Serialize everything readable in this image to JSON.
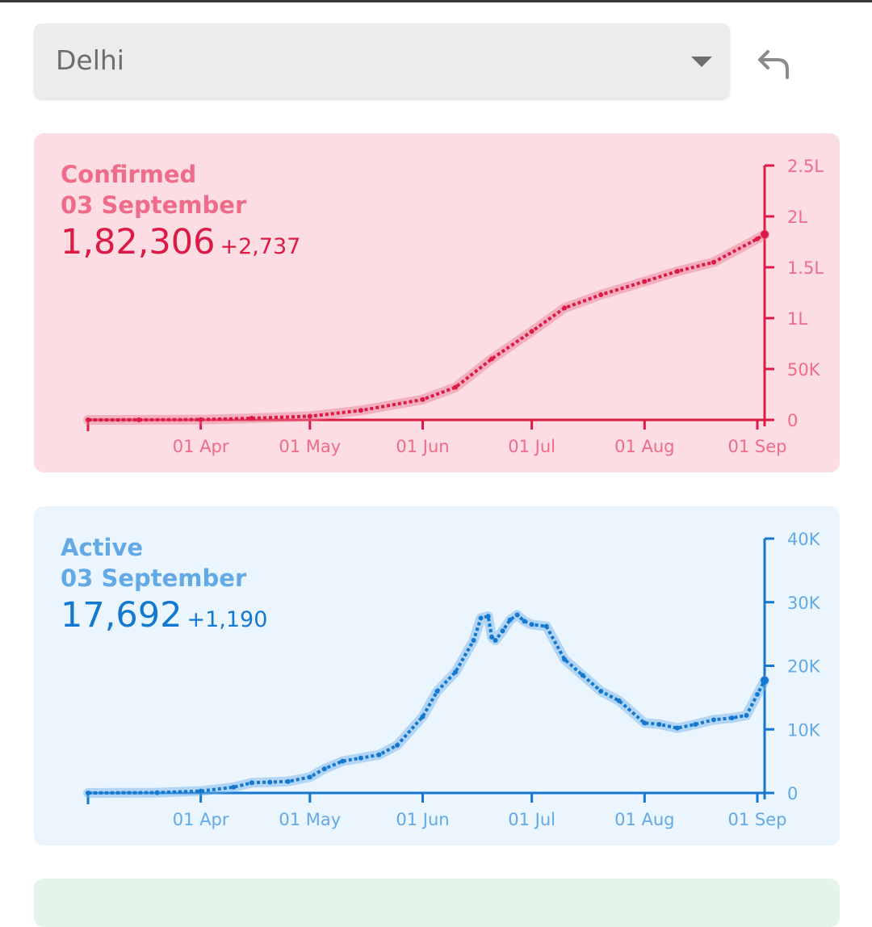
{
  "region": {
    "selected": "Delhi",
    "caret_icon": "caret-down-icon",
    "back_icon": "undo-arrow-icon"
  },
  "colors": {
    "confirmed_line": "#dc1a45",
    "confirmed_label": "#ee6c87",
    "confirmed_bg": "#fcdde3",
    "active_line": "#1378cf",
    "active_label": "#62a9e6",
    "active_bg": "#eaf5fd"
  },
  "cards": {
    "confirmed": {
      "title": "Confirmed",
      "date": "03 September",
      "total": "1,82,306",
      "delta": "+2,737"
    },
    "active": {
      "title": "Active",
      "date": "03 September",
      "total": "17,692",
      "delta": "+1,190"
    }
  },
  "chart_data": [
    {
      "type": "line",
      "series": [
        {
          "name": "Confirmed",
          "x": [
            "2020-03-01",
            "2020-03-15",
            "2020-04-01",
            "2020-04-15",
            "2020-05-01",
            "2020-05-15",
            "2020-06-01",
            "2020-06-10",
            "2020-06-20",
            "2020-07-01",
            "2020-07-10",
            "2020-07-20",
            "2020-08-01",
            "2020-08-10",
            "2020-08-20",
            "2020-09-01",
            "2020-09-03"
          ],
          "values": [
            5,
            100,
            300,
            1600,
            3600,
            9300,
            20000,
            32000,
            60000,
            87000,
            110000,
            123000,
            136000,
            146000,
            155000,
            178000,
            182306
          ]
        }
      ],
      "xlabel": "",
      "ylabel": "",
      "x_tick_labels": [
        "01 Apr",
        "01 May",
        "01 Jun",
        "01 Jul",
        "01 Aug",
        "01 Sep"
      ],
      "y_tick_labels": [
        "0",
        "50K",
        "1L",
        "1.5L",
        "2L",
        "2.5L"
      ],
      "y_ticks": [
        0,
        50000,
        100000,
        150000,
        200000,
        250000
      ],
      "ylim": [
        0,
        250000
      ],
      "xlim": [
        "2020-03-01",
        "2020-09-03"
      ],
      "y_axis_position": "right",
      "grid": false
    },
    {
      "type": "line",
      "series": [
        {
          "name": "Active",
          "x": [
            "2020-03-01",
            "2020-03-20",
            "2020-04-01",
            "2020-04-10",
            "2020-04-15",
            "2020-04-20",
            "2020-04-25",
            "2020-05-01",
            "2020-05-05",
            "2020-05-10",
            "2020-05-15",
            "2020-05-20",
            "2020-05-25",
            "2020-06-01",
            "2020-06-05",
            "2020-06-10",
            "2020-06-15",
            "2020-06-17",
            "2020-06-19",
            "2020-06-20",
            "2020-06-21",
            "2020-06-23",
            "2020-06-25",
            "2020-06-27",
            "2020-06-29",
            "2020-07-01",
            "2020-07-05",
            "2020-07-10",
            "2020-07-15",
            "2020-07-20",
            "2020-07-25",
            "2020-08-01",
            "2020-08-05",
            "2020-08-10",
            "2020-08-15",
            "2020-08-20",
            "2020-08-25",
            "2020-08-29",
            "2020-09-01",
            "2020-09-03"
          ],
          "values": [
            0,
            50,
            300,
            900,
            1600,
            1700,
            1800,
            2500,
            3800,
            5000,
            5500,
            6000,
            7500,
            12000,
            16000,
            19000,
            24000,
            27500,
            27800,
            24500,
            24000,
            25500,
            27200,
            28000,
            27000,
            26500,
            26200,
            21000,
            18500,
            16000,
            14500,
            11000,
            10800,
            10200,
            10800,
            11500,
            11800,
            12200,
            15500,
            17692
          ]
        }
      ],
      "xlabel": "",
      "ylabel": "",
      "x_tick_labels": [
        "01 Apr",
        "01 May",
        "01 Jun",
        "01 Jul",
        "01 Aug",
        "01 Sep"
      ],
      "y_tick_labels": [
        "0",
        "10K",
        "20K",
        "30K",
        "40K"
      ],
      "y_ticks": [
        0,
        10000,
        20000,
        30000,
        40000
      ],
      "ylim": [
        0,
        40000
      ],
      "xlim": [
        "2020-03-01",
        "2020-09-03"
      ],
      "y_axis_position": "right",
      "grid": false
    }
  ]
}
